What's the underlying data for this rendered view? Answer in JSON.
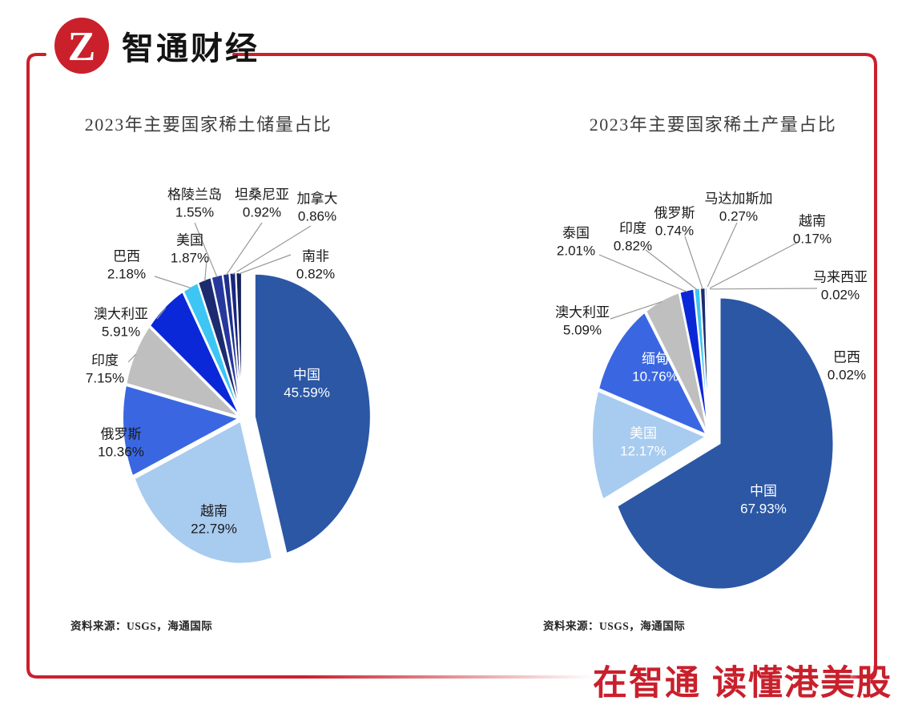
{
  "brand": {
    "logo_text": "智通财经",
    "logo_glyph": "Z",
    "slogan": "在智通 读懂港美股",
    "brand_red": "#C9202C"
  },
  "chart_data": [
    {
      "type": "pie",
      "title": "2023年主要国家稀土储量占比",
      "source": "资料来源：USGS，海通国际",
      "legend_position": "none",
      "labels": [
        "中国",
        "越南",
        "俄罗斯",
        "印度",
        "澳大利亚",
        "巴西",
        "美国",
        "格陵兰岛",
        "坦桑尼亚",
        "加拿大",
        "南非"
      ],
      "values": [
        45.59,
        22.79,
        10.36,
        7.15,
        5.91,
        2.18,
        1.87,
        1.55,
        0.92,
        0.86,
        0.82
      ],
      "colors": [
        "#2B57A5",
        "#A8CBF0",
        "#3A67E1",
        "#BFBFBF",
        "#0A28D8",
        "#3DC6F3",
        "#1C2B6F",
        "#27389C",
        "#1F2F8C",
        "#18267D",
        "#152158"
      ],
      "start_angle_deg": 0,
      "clockwise": true,
      "exploded_slice": "中国"
    },
    {
      "type": "pie",
      "title": "2023年主要国家稀土产量占比",
      "source": "资料来源：USGS，海通国际",
      "legend_position": "none",
      "labels": [
        "中国",
        "美国",
        "缅甸",
        "澳大利亚",
        "泰国",
        "印度",
        "俄罗斯",
        "马达加斯加",
        "越南",
        "马来西亚",
        "巴西"
      ],
      "values": [
        67.93,
        12.17,
        10.76,
        5.09,
        2.01,
        0.82,
        0.74,
        0.27,
        0.17,
        0.02,
        0.02
      ],
      "colors": [
        "#2B57A5",
        "#A8CBF0",
        "#3A67E1",
        "#BFBFBF",
        "#0A28D8",
        "#3DC6F3",
        "#1C2B6F",
        "#27389C",
        "#1F2F8C",
        "#18267D",
        "#152158"
      ],
      "start_angle_deg": 0,
      "clockwise": true,
      "exploded_slice": "中国"
    }
  ]
}
